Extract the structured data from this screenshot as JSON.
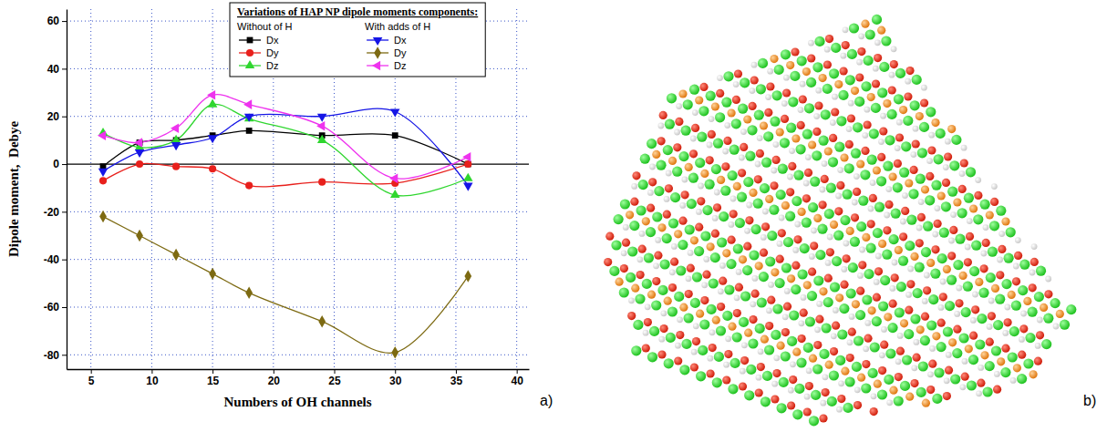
{
  "chart_data": {
    "type": "line",
    "x_label": "Numbers of OH channels",
    "y_label": "Dipole moment,  Debye",
    "legend_title": "Variations of HAP NP dipole moments components:",
    "legend_columns": [
      "Without of H",
      "With adds of H"
    ],
    "x": [
      6,
      9,
      12,
      15,
      18,
      24,
      30,
      36
    ],
    "series": [
      {
        "name": "Dx",
        "color": "#000000",
        "marker": "square",
        "line_style": "solid",
        "values": [
          -1,
          9,
          10,
          12,
          14,
          12,
          12,
          0
        ]
      },
      {
        "name": "Dy",
        "color": "#e8201c",
        "marker": "circle",
        "line_style": "solid",
        "values": [
          -7,
          0,
          -1,
          -2,
          -9,
          -7.5,
          -8,
          0
        ]
      },
      {
        "name": "Dz",
        "color": "#2fd62f",
        "marker": "triangle-up",
        "line_style": "solid",
        "values": [
          13,
          7,
          10,
          25,
          19,
          10,
          -13,
          -6
        ]
      },
      {
        "name": "Dx",
        "color": "#1515e6",
        "marker": "triangle-down",
        "line_style": "solid",
        "values": [
          -3,
          5,
          8,
          11,
          20,
          20,
          22,
          -9
        ]
      },
      {
        "name": "Dy",
        "color": "#7d6a12",
        "marker": "diamond",
        "line_style": "solid",
        "values": [
          -22,
          -30,
          -38,
          -46,
          -54,
          -66,
          -79,
          -47
        ]
      },
      {
        "name": "Dz",
        "color": "#ee33ee",
        "marker": "triangle-left",
        "line_style": "solid",
        "values": [
          12,
          9,
          15,
          29,
          25,
          16,
          -6,
          3
        ]
      }
    ],
    "xlim": [
      3,
      41
    ],
    "xticks": [
      5,
      10,
      15,
      20,
      25,
      30,
      35,
      40
    ],
    "ylim": [
      -86,
      65
    ],
    "yticks": [
      -80,
      -60,
      -40,
      -20,
      0,
      20,
      40,
      60
    ],
    "grid": true,
    "legend": "top",
    "panel_label": "a)"
  },
  "image": {
    "panel_label": "b)"
  }
}
